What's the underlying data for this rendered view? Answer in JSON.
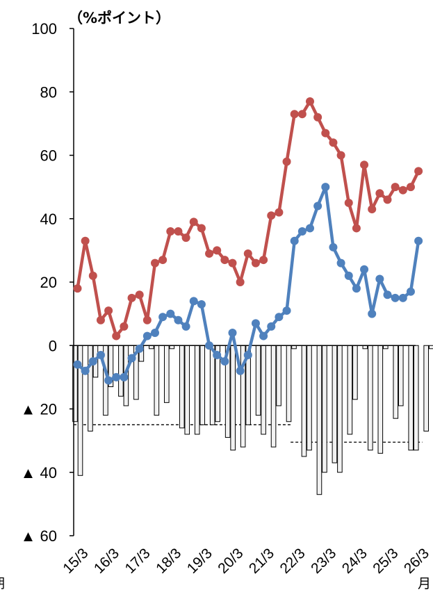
{
  "chart_data": {
    "type": "line+bar",
    "ylabel": "（%ポイント）",
    "x_label_right": "月",
    "x_label_left": "期",
    "ylim": [
      -60,
      100
    ],
    "y_ticks": [
      {
        "value": 100,
        "label": "100"
      },
      {
        "value": 80,
        "label": "80"
      },
      {
        "value": 60,
        "label": "60"
      },
      {
        "value": 40,
        "label": "40"
      },
      {
        "value": 20,
        "label": "20"
      },
      {
        "value": 0,
        "label": "0"
      },
      {
        "value": -20,
        "label": "▲ 20"
      },
      {
        "value": -40,
        "label": "▲ 40"
      },
      {
        "value": -60,
        "label": "▲ 60"
      }
    ],
    "x_tick_labels": [
      "15/3",
      "16/3",
      "17/3",
      "18/3",
      "19/3",
      "20/3",
      "21/3",
      "22/3",
      "23/3",
      "24/3",
      "25/3",
      "26/3"
    ],
    "x_tick_start_index": 0,
    "x_tick_step": 4,
    "series": [
      {
        "type": "line",
        "color": "#c0504d",
        "values": [
          18,
          33,
          22,
          8,
          11,
          3,
          6,
          15,
          16,
          8,
          26,
          27,
          36,
          36,
          34,
          39,
          37,
          29,
          30,
          27,
          26,
          20,
          29,
          26,
          27,
          41,
          42,
          58,
          73,
          73,
          77,
          72,
          67,
          64,
          60,
          45,
          37,
          57,
          43,
          48,
          46,
          50,
          49,
          50,
          55
        ]
      },
      {
        "type": "line",
        "color": "#4f81bd",
        "values": [
          -6,
          -8,
          -5,
          -3,
          -11,
          -10,
          -10,
          -4,
          -1,
          3,
          4,
          9,
          10,
          8,
          6,
          14,
          13,
          0,
          -3,
          -5,
          4,
          -8,
          -3,
          7,
          3,
          6,
          9,
          11,
          33,
          36,
          37,
          44,
          50,
          31,
          26,
          22,
          18,
          24,
          10,
          21,
          16,
          15,
          15,
          17,
          33
        ]
      },
      {
        "type": "bar",
        "color": "#f2f2f2",
        "stroke": "#000000",
        "pairs": [
          [
            -24,
            -41
          ],
          [
            -27,
            -10
          ],
          [
            -22,
            -13
          ],
          [
            -16,
            -19
          ],
          [
            -17,
            -5
          ],
          [
            -1,
            -22
          ],
          [
            -18,
            -1
          ],
          [
            -26,
            -28
          ],
          [
            -28,
            -25
          ],
          [
            -25,
            -24
          ],
          [
            -29,
            -33
          ],
          [
            -32,
            -25
          ],
          [
            -22,
            -28
          ],
          [
            -32,
            -19
          ],
          [
            -24,
            -1
          ],
          [
            -35,
            -33
          ],
          [
            -47,
            -40
          ],
          [
            -37,
            -40
          ],
          [
            -28,
            -17
          ],
          [
            -1,
            -33
          ],
          [
            -34,
            -1
          ],
          [
            -23,
            -19
          ],
          [
            -33,
            -33
          ],
          [
            -27,
            -1
          ],
          [
            -33,
            -30
          ],
          [
            -35,
            -34
          ],
          [
            -33,
            -22
          ]
        ]
      }
    ],
    "reference_lines": [
      {
        "style": "dashed",
        "from_index": 0,
        "to_index": 27,
        "value": -25
      },
      {
        "style": "dashed",
        "from_index": 28,
        "to_index": 44,
        "value": -30.5
      }
    ],
    "grid": false,
    "legend": "none"
  }
}
